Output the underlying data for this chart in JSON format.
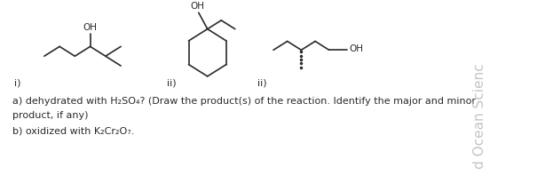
{
  "bg_color": "#ffffff",
  "line_color": "#2a2a2a",
  "fig_width": 6.14,
  "fig_height": 2.06,
  "label_i": "i)",
  "label_ii_1": "ii)",
  "label_ii_2": "ii)",
  "text_a": "a) dehydrated with H₂SO₄? (Draw the product(s) of the reaction. Identify the major and minor",
  "text_a2": "product, if any)",
  "text_b": "b) oxidized with K₂Cr₂O₇.",
  "watermark": "d Ocean Scienc",
  "mol1_oh": "OH",
  "mol2_oh": "OH",
  "mol3_oh": "OH",
  "font_size_label": 8,
  "font_size_text": 8.0,
  "font_size_oh": 7.5,
  "font_size_watermark": 11
}
